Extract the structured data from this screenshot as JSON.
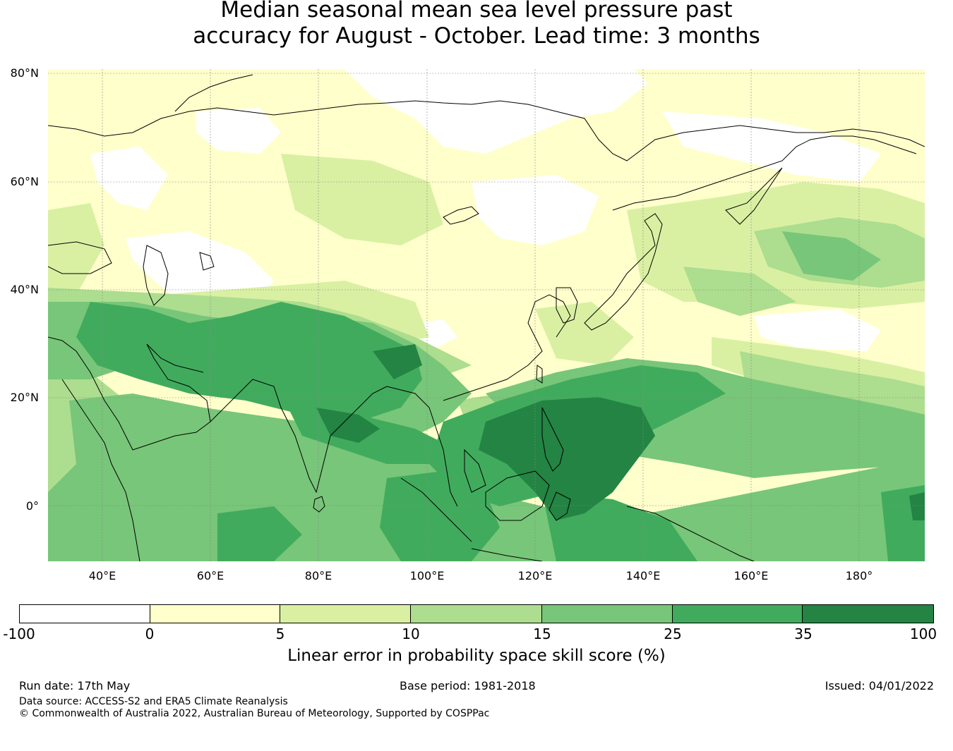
{
  "title": {
    "line1": "Median seasonal mean sea level pressure past",
    "line2": "accuracy for August - October. Lead time: 3 months"
  },
  "map": {
    "lat_labels": [
      "80°N",
      "60°N",
      "40°N",
      "20°N",
      "0°"
    ],
    "lon_labels": [
      "40°E",
      "60°E",
      "80°E",
      "100°E",
      "120°E",
      "140°E",
      "160°E",
      "180°"
    ],
    "colors": {
      "white": "#ffffff",
      "c0_5": "#ffffcc",
      "c5_10": "#d9f0a3",
      "c10_15": "#addd8e",
      "c15_25": "#78c679",
      "c25_35": "#41ab5d",
      "c35_100": "#238443",
      "coast": "#000000",
      "grid": "#888888"
    }
  },
  "colorbar": {
    "label": "Linear error in probability space skill score (%)",
    "ticks": [
      "-100",
      "0",
      "5",
      "10",
      "15",
      "25",
      "35",
      "100"
    ],
    "segment_colors": [
      "#ffffff",
      "#ffffcc",
      "#d9f0a3",
      "#addd8e",
      "#78c679",
      "#41ab5d",
      "#238443"
    ]
  },
  "footer": {
    "run_date": "Run date: 17th May",
    "base_period": "Base period: 1981-2018",
    "issued": "Issued: 04/01/2022",
    "data_source": "Data source: ACCESS-S2 and ERA5 Climate Reanalysis",
    "copyright": "© Commonwealth of Australia 2022, Australian Bureau of Meteorology, Supported by COSPPac"
  }
}
